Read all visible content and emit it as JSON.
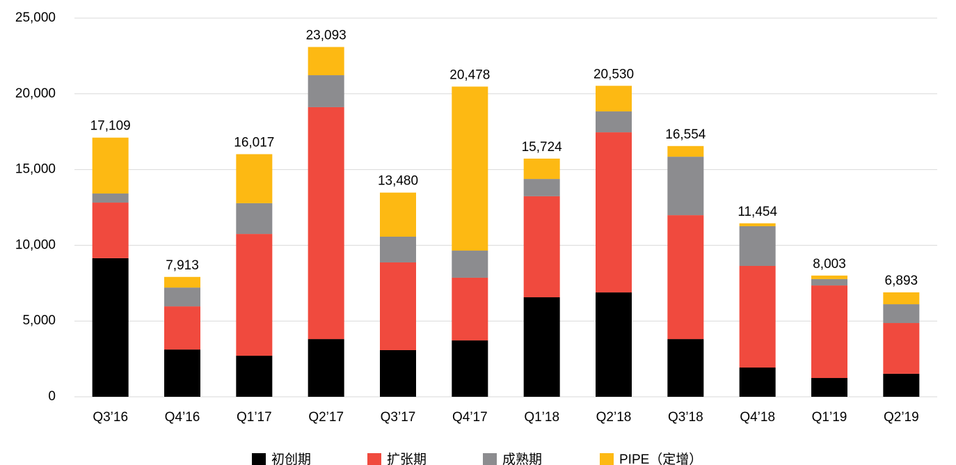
{
  "chart_data": {
    "type": "stacked_bar",
    "categories": [
      "Q3’16",
      "Q4’16",
      "Q1’17",
      "Q2’17",
      "Q3’17",
      "Q4’17",
      "Q1’18",
      "Q2’18",
      "Q3’18",
      "Q4’18",
      "Q1’19",
      "Q2’19"
    ],
    "series": [
      {
        "name": "初创期",
        "color": "#000000",
        "values": [
          9150,
          3120,
          2710,
          3810,
          3080,
          3720,
          6570,
          6890,
          3810,
          1930,
          1240,
          1520
        ]
      },
      {
        "name": "扩张期",
        "color": "#f04a3e",
        "values": [
          3670,
          2850,
          8040,
          15310,
          5790,
          4140,
          6670,
          10570,
          8180,
          6710,
          6110,
          3350
        ]
      },
      {
        "name": "成熟期",
        "color": "#8c8c8f",
        "values": [
          600,
          1240,
          2030,
          2110,
          1700,
          1790,
          1140,
          1380,
          3860,
          2620,
          420,
          1240
        ]
      },
      {
        "name": "PIPE（定增）",
        "color": "#fdb913",
        "values": [
          3689,
          703,
          3237,
          1863,
          2910,
          10828,
          1344,
          1690,
          704,
          194,
          233,
          783
        ]
      }
    ],
    "totals": [
      17109,
      7913,
      16017,
      23093,
      13480,
      20478,
      15724,
      20530,
      16554,
      11454,
      8003,
      6893
    ],
    "total_labels": [
      "17,109",
      "7,913",
      "16,017",
      "23,093",
      "13,480",
      "20,478",
      "15,724",
      "20,530",
      "16,554",
      "11,454",
      "8,003",
      "6,893"
    ],
    "ylim": [
      0,
      25000
    ],
    "yticks": [
      0,
      {
        "value": 5000,
        "label": "5,000"
      },
      {
        "value": 10000,
        "label": "10,000"
      },
      {
        "value": 15000,
        "label": "15,000"
      },
      {
        "value": 20000,
        "label": "20,000"
      },
      {
        "value": 25000,
        "label": "25,000"
      }
    ],
    "grid": true,
    "legend": "bottom"
  }
}
